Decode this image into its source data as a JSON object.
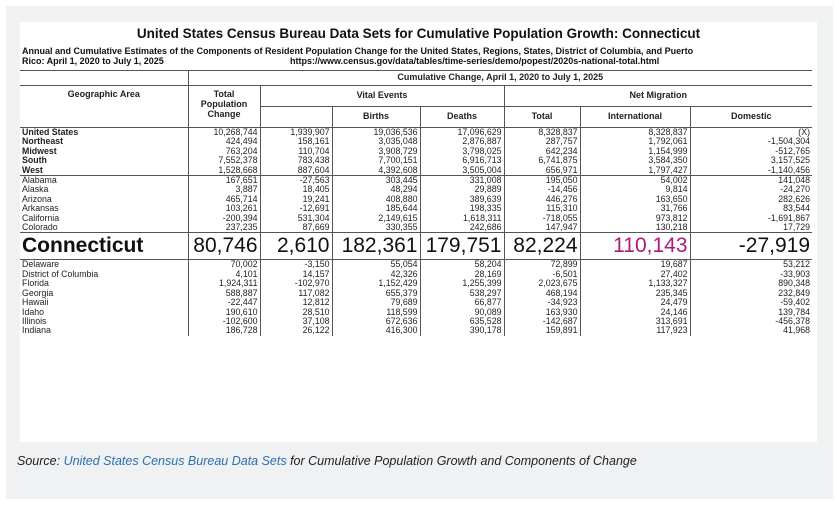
{
  "title": "United States Census Bureau Data Sets for Cumulative Population Growth: Connecticut",
  "subtitle_line1": "Annual and Cumulative Estimates of the Components of Resident Population Change for the United States, Regions, States, District of Columbia, and Puerto",
  "subtitle_line2": "Rico: April 1, 2020 to July 1, 2025",
  "url": "https://www.census.gov/data/tables/time-series/demo/popest/2020s-national-total.html",
  "headers": {
    "cumulative": "Cumulative Change, April 1, 2020 to July 1, 2025",
    "geo": "Geographic Area",
    "total_pop_change": "Total Population Change",
    "vital": "Vital Events",
    "net_migration": "Net Migration",
    "births": "Births",
    "deaths": "Deaths",
    "total": "Total",
    "international": "International",
    "domestic": "Domestic"
  },
  "rows": [
    {
      "name": "United States",
      "total_change": "10,268,744",
      "vital": "1,939,907",
      "births": "19,036,536",
      "deaths": "17,096,629",
      "net_total": "8,328,837",
      "international": "8,328,837",
      "domestic": "(X)"
    },
    {
      "name": "Northeast",
      "total_change": "424,494",
      "vital": "158,161",
      "births": "3,035,048",
      "deaths": "2,876,887",
      "net_total": "287,757",
      "international": "1,792,061",
      "domestic": "-1,504,304"
    },
    {
      "name": "Midwest",
      "total_change": "763,204",
      "vital": "110,704",
      "births": "3,908,729",
      "deaths": "3,798,025",
      "net_total": "642,234",
      "international": "1,154,999",
      "domestic": "-512,765"
    },
    {
      "name": "South",
      "total_change": "7,552,378",
      "vital": "783,438",
      "births": "7,700,151",
      "deaths": "6,916,713",
      "net_total": "6,741,875",
      "international": "3,584,350",
      "domestic": "3,157,525"
    },
    {
      "name": "West",
      "total_change": "1,528,668",
      "vital": "887,604",
      "births": "4,392,608",
      "deaths": "3,505,004",
      "net_total": "656,971",
      "international": "1,797,427",
      "domestic": "-1,140,456"
    },
    {
      "name": "Alabama",
      "total_change": "167,651",
      "vital": "-27,563",
      "births": "303,445",
      "deaths": "331,008",
      "net_total": "195,050",
      "international": "54,002",
      "domestic": "141,048"
    },
    {
      "name": "Alaska",
      "total_change": "3,887",
      "vital": "18,405",
      "births": "48,294",
      "deaths": "29,889",
      "net_total": "-14,456",
      "international": "9,814",
      "domestic": "-24,270"
    },
    {
      "name": "Arizona",
      "total_change": "465,714",
      "vital": "19,241",
      "births": "408,880",
      "deaths": "389,639",
      "net_total": "446,276",
      "international": "163,650",
      "domestic": "282,626"
    },
    {
      "name": "Arkansas",
      "total_change": "103,261",
      "vital": "-12,691",
      "births": "185,644",
      "deaths": "198,335",
      "net_total": "115,310",
      "international": "31,766",
      "domestic": "83,544"
    },
    {
      "name": "California",
      "total_change": "-200,394",
      "vital": "531,304",
      "births": "2,149,615",
      "deaths": "1,618,311",
      "net_total": "-718,055",
      "international": "973,812",
      "domestic": "-1,691,867"
    },
    {
      "name": "Colorado",
      "total_change": "237,235",
      "vital": "87,669",
      "births": "330,355",
      "deaths": "242,686",
      "net_total": "147,947",
      "international": "130,218",
      "domestic": "17,729"
    },
    {
      "name": "Connecticut",
      "total_change": "80,746",
      "vital": "2,610",
      "births": "182,361",
      "deaths": "179,751",
      "net_total": "82,224",
      "international": "110,143",
      "domestic": "-27,919"
    },
    {
      "name": "Delaware",
      "total_change": "70,002",
      "vital": "-3,150",
      "births": "55,054",
      "deaths": "58,204",
      "net_total": "72,899",
      "international": "19,687",
      "domestic": "53,212"
    },
    {
      "name": "District of Columbia",
      "total_change": "4,101",
      "vital": "14,157",
      "births": "42,326",
      "deaths": "28,169",
      "net_total": "-6,501",
      "international": "27,402",
      "domestic": "-33,903"
    },
    {
      "name": "Florida",
      "total_change": "1,924,311",
      "vital": "-102,970",
      "births": "1,152,429",
      "deaths": "1,255,399",
      "net_total": "2,023,675",
      "international": "1,133,327",
      "domestic": "890,348"
    },
    {
      "name": "Georgia",
      "total_change": "588,887",
      "vital": "117,082",
      "births": "655,379",
      "deaths": "538,297",
      "net_total": "468,194",
      "international": "235,345",
      "domestic": "232,849"
    },
    {
      "name": "Hawaii",
      "total_change": "-22,447",
      "vital": "12,812",
      "births": "79,689",
      "deaths": "66,877",
      "net_total": "-34,923",
      "international": "24,479",
      "domestic": "-59,402"
    },
    {
      "name": "Idaho",
      "total_change": "190,610",
      "vital": "28,510",
      "births": "118,599",
      "deaths": "90,089",
      "net_total": "163,930",
      "international": "24,146",
      "domestic": "139,784"
    },
    {
      "name": "Illinois",
      "total_change": "-102,600",
      "vital": "37,108",
      "births": "672,636",
      "deaths": "635,528",
      "net_total": "-142,687",
      "international": "313,691",
      "domestic": "-456,378"
    },
    {
      "name": "Indiana",
      "total_change": "186,728",
      "vital": "26,122",
      "births": "416,300",
      "deaths": "390,178",
      "net_total": "159,891",
      "international": "117,923",
      "domestic": "41,968"
    }
  ],
  "source": {
    "prefix": "Source: ",
    "link_text": "United States Census Bureau Data Sets",
    "suffix": " for Cumulative Population Growth and Components of Change"
  },
  "colors": {
    "highlight_international": "#b0197a",
    "link": "#2b6fb3"
  }
}
